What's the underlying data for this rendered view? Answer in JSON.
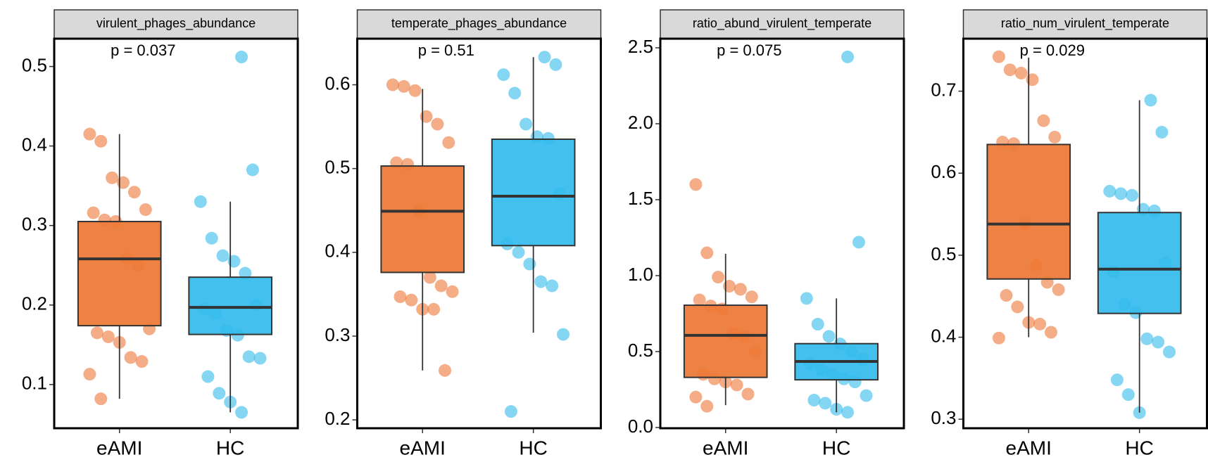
{
  "chart_data": [
    {
      "type": "box",
      "title": "virulent_phages_abundance",
      "annotation": "p = 0.037",
      "categories": [
        "eAMI",
        "HC"
      ],
      "colors": [
        "#ED7735",
        "#33BBEB"
      ],
      "boxes": [
        {
          "whislo": 0.082,
          "q1": 0.174,
          "med": 0.258,
          "q3": 0.305,
          "whishi": 0.415
        },
        {
          "whislo": 0.065,
          "q1": 0.163,
          "med": 0.197,
          "q3": 0.235,
          "whishi": 0.33
        }
      ],
      "points": [
        [
          0.415,
          0.406,
          0.36,
          0.354,
          0.342,
          0.32,
          0.316,
          0.307,
          0.305,
          0.258,
          0.25,
          0.17,
          0.165,
          0.16,
          0.153,
          0.134,
          0.129,
          0.113,
          0.082
        ],
        [
          0.512,
          0.37,
          0.33,
          0.284,
          0.262,
          0.255,
          0.24,
          0.2,
          0.195,
          0.19,
          0.168,
          0.162,
          0.135,
          0.133,
          0.11,
          0.089,
          0.078,
          0.065
        ]
      ],
      "ylim": [
        0.045,
        0.535
      ],
      "yticks": [
        0.1,
        0.2,
        0.3,
        0.4,
        0.5
      ]
    },
    {
      "type": "box",
      "title": "temperate_phages_abundance",
      "annotation": "p = 0.51",
      "categories": [
        "eAMI",
        "HC"
      ],
      "colors": [
        "#ED7735",
        "#33BBEB"
      ],
      "boxes": [
        {
          "whislo": 0.259,
          "q1": 0.376,
          "med": 0.449,
          "q3": 0.503,
          "whishi": 0.595
        },
        {
          "whislo": 0.304,
          "q1": 0.408,
          "med": 0.467,
          "q3": 0.535,
          "whishi": 0.633
        }
      ],
      "points": [
        [
          0.6,
          0.598,
          0.593,
          0.562,
          0.553,
          0.531,
          0.507,
          0.505,
          0.449,
          0.37,
          0.36,
          0.353,
          0.347,
          0.343,
          0.332,
          0.332,
          0.259
        ],
        [
          0.633,
          0.624,
          0.612,
          0.59,
          0.553,
          0.538,
          0.536,
          0.47,
          0.41,
          0.4,
          0.386,
          0.365,
          0.36,
          0.302,
          0.21
        ]
      ],
      "ylim": [
        0.19,
        0.655
      ],
      "yticks": [
        0.2,
        0.3,
        0.4,
        0.5,
        0.6
      ]
    },
    {
      "type": "box",
      "title": "ratio_abund_virulent_temperate",
      "annotation": "p = 0.075",
      "categories": [
        "eAMI",
        "HC"
      ],
      "colors": [
        "#ED7735",
        "#33BBEB"
      ],
      "boxes": [
        {
          "whislo": 0.147,
          "q1": 0.33,
          "med": 0.607,
          "q3": 0.805,
          "whishi": 1.144
        },
        {
          "whislo": 0.1,
          "q1": 0.314,
          "med": 0.435,
          "q3": 0.552,
          "whishi": 0.85
        }
      ],
      "points": [
        [
          1.6,
          1.15,
          0.99,
          0.93,
          0.91,
          0.86,
          0.84,
          0.8,
          0.78,
          0.62,
          0.6,
          0.5,
          0.35,
          0.32,
          0.3,
          0.28,
          0.22,
          0.2,
          0.14
        ],
        [
          2.44,
          1.22,
          0.85,
          0.68,
          0.6,
          0.55,
          0.5,
          0.45,
          0.42,
          0.38,
          0.35,
          0.32,
          0.3,
          0.21,
          0.18,
          0.16,
          0.12,
          0.1
        ]
      ],
      "ylim": [
        -0.005,
        2.56
      ],
      "yticks": [
        {
          "value": 0,
          "label": "0.0"
        },
        0.5,
        {
          "value": 1,
          "label": "1.0"
        },
        1.5,
        {
          "value": 2,
          "label": "2.0"
        },
        2.5
      ]
    },
    {
      "type": "box",
      "title": "ratio_num_virulent_temperate",
      "annotation": "p = 0.029",
      "categories": [
        "eAMI",
        "HC"
      ],
      "colors": [
        "#ED7735",
        "#33BBEB"
      ],
      "boxes": [
        {
          "whislo": 0.4,
          "q1": 0.471,
          "med": 0.538,
          "q3": 0.635,
          "whishi": 0.741
        },
        {
          "whislo": 0.308,
          "q1": 0.429,
          "med": 0.483,
          "q3": 0.552,
          "whishi": 0.689
        }
      ],
      "points": [
        [
          0.742,
          0.726,
          0.722,
          0.714,
          0.664,
          0.644,
          0.638,
          0.636,
          0.538,
          0.488,
          0.467,
          0.458,
          0.451,
          0.437,
          0.418,
          0.416,
          0.406,
          0.399
        ],
        [
          0.689,
          0.65,
          0.578,
          0.575,
          0.573,
          0.556,
          0.554,
          0.49,
          0.48,
          0.44,
          0.43,
          0.398,
          0.394,
          0.382,
          0.348,
          0.33,
          0.308
        ]
      ],
      "ylim": [
        0.289,
        0.764
      ],
      "yticks": [
        0.3,
        0.4,
        0.5,
        0.6,
        0.7
      ]
    }
  ]
}
